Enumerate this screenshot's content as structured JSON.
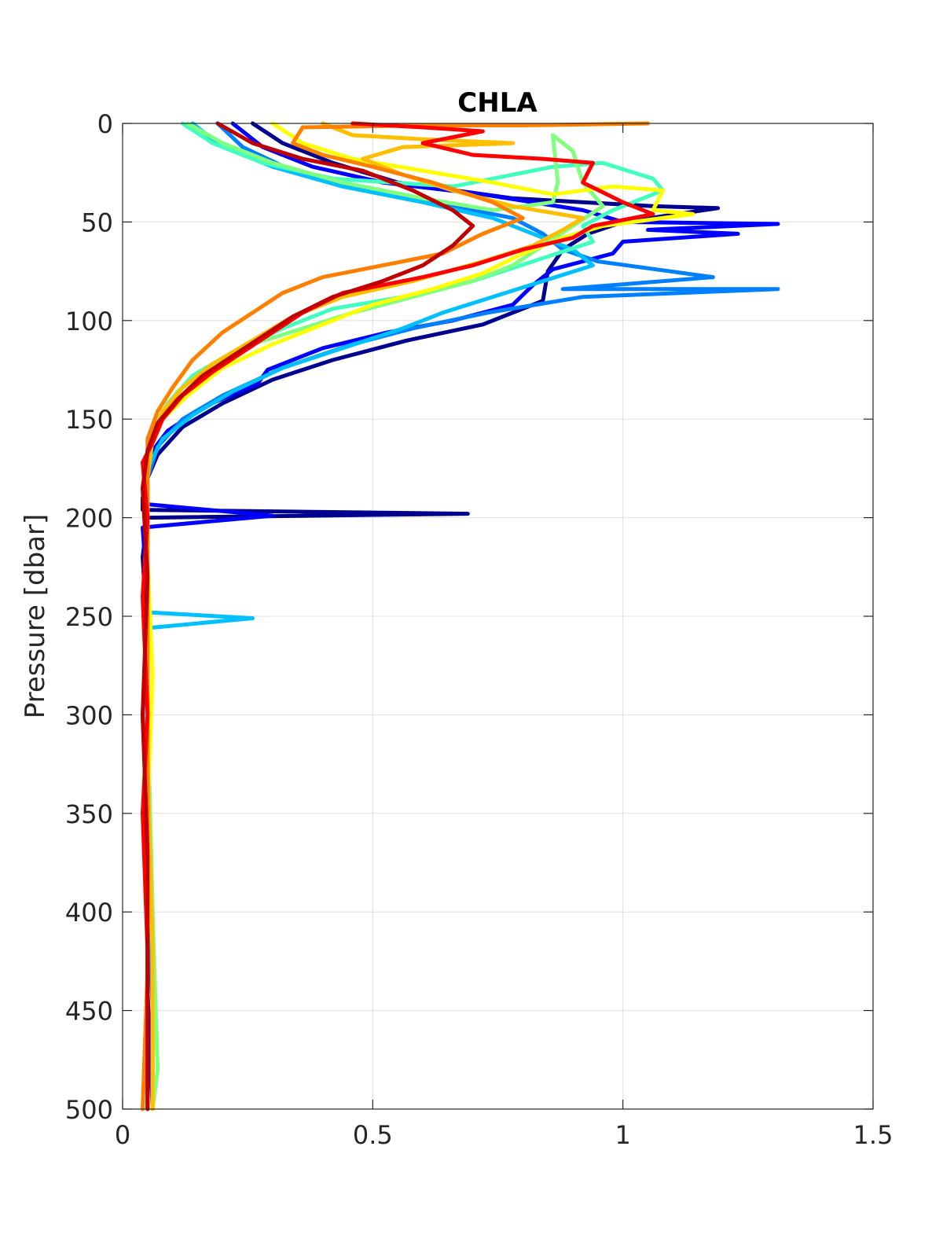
{
  "chart_data": {
    "type": "line",
    "title": "CHLA",
    "xlabel": "",
    "ylabel": "Pressure [dbar]",
    "xlim": [
      0,
      1.5
    ],
    "ylim": [
      0,
      500
    ],
    "y_reversed": true,
    "grid": true,
    "legend": "none",
    "xticks": [
      "0",
      "0.5",
      "1",
      "1.5"
    ],
    "yticks": [
      "0",
      "50",
      "100",
      "150",
      "200",
      "250",
      "300",
      "350",
      "400",
      "450",
      "500"
    ],
    "series": [
      {
        "color": "#00008f",
        "points": [
          [
            0.26,
            0
          ],
          [
            0.32,
            10
          ],
          [
            0.42,
            20
          ],
          [
            0.55,
            30
          ],
          [
            0.78,
            38
          ],
          [
            1.06,
            42
          ],
          [
            1.19,
            43
          ],
          [
            1.0,
            50
          ],
          [
            0.93,
            56
          ],
          [
            0.88,
            64
          ],
          [
            0.85,
            75
          ],
          [
            0.84,
            90
          ],
          [
            0.72,
            102
          ],
          [
            0.57,
            110
          ],
          [
            0.42,
            120
          ],
          [
            0.3,
            130
          ],
          [
            0.2,
            142
          ],
          [
            0.12,
            154
          ],
          [
            0.07,
            168
          ],
          [
            0.05,
            180
          ],
          [
            0.04,
            190
          ],
          [
            0.04,
            196
          ],
          [
            0.69,
            198
          ],
          [
            0.05,
            200
          ],
          [
            0.04,
            220
          ],
          [
            0.05,
            260
          ],
          [
            0.04,
            300
          ],
          [
            0.05,
            360
          ],
          [
            0.05,
            420
          ],
          [
            0.05,
            470
          ],
          [
            0.05,
            500
          ]
        ]
      },
      {
        "color": "#0000ff",
        "points": [
          [
            0.22,
            0
          ],
          [
            0.28,
            12
          ],
          [
            0.38,
            22
          ],
          [
            0.52,
            30
          ],
          [
            0.72,
            36
          ],
          [
            0.92,
            44
          ],
          [
            1.0,
            50
          ],
          [
            1.31,
            51
          ],
          [
            1.05,
            54
          ],
          [
            1.23,
            56
          ],
          [
            1.0,
            60
          ],
          [
            0.98,
            66
          ],
          [
            0.86,
            74
          ],
          [
            0.82,
            82
          ],
          [
            0.78,
            92
          ],
          [
            0.66,
            100
          ],
          [
            0.53,
            106
          ],
          [
            0.4,
            114
          ],
          [
            0.29,
            125
          ],
          [
            0.27,
            132
          ],
          [
            0.16,
            144
          ],
          [
            0.09,
            156
          ],
          [
            0.06,
            166
          ],
          [
            0.05,
            180
          ],
          [
            0.04,
            193
          ],
          [
            0.3,
            199
          ],
          [
            0.04,
            205
          ],
          [
            0.05,
            240
          ],
          [
            0.05,
            300
          ],
          [
            0.05,
            380
          ],
          [
            0.05,
            440
          ],
          [
            0.06,
            500
          ]
        ]
      },
      {
        "color": "#0080ff",
        "points": [
          [
            0.19,
            0
          ],
          [
            0.24,
            12
          ],
          [
            0.34,
            24
          ],
          [
            0.46,
            32
          ],
          [
            0.62,
            40
          ],
          [
            0.78,
            48
          ],
          [
            0.84,
            56
          ],
          [
            0.88,
            64
          ],
          [
            0.95,
            70
          ],
          [
            1.18,
            78
          ],
          [
            0.88,
            84
          ],
          [
            1.31,
            84
          ],
          [
            0.92,
            88
          ],
          [
            0.73,
            96
          ],
          [
            0.58,
            104
          ],
          [
            0.46,
            112
          ],
          [
            0.32,
            124
          ],
          [
            0.2,
            138
          ],
          [
            0.12,
            150
          ],
          [
            0.07,
            164
          ],
          [
            0.05,
            180
          ],
          [
            0.05,
            220
          ],
          [
            0.05,
            300
          ],
          [
            0.05,
            380
          ],
          [
            0.06,
            450
          ],
          [
            0.06,
            500
          ]
        ]
      },
      {
        "color": "#00c0ff",
        "points": [
          [
            0.14,
            0
          ],
          [
            0.2,
            12
          ],
          [
            0.3,
            22
          ],
          [
            0.44,
            32
          ],
          [
            0.6,
            40
          ],
          [
            0.74,
            48
          ],
          [
            0.82,
            56
          ],
          [
            0.9,
            64
          ],
          [
            0.94,
            72
          ],
          [
            0.84,
            80
          ],
          [
            0.74,
            88
          ],
          [
            0.64,
            96
          ],
          [
            0.56,
            104
          ],
          [
            0.44,
            114
          ],
          [
            0.32,
            124
          ],
          [
            0.22,
            136
          ],
          [
            0.14,
            148
          ],
          [
            0.08,
            160
          ],
          [
            0.05,
            175
          ],
          [
            0.05,
            220
          ],
          [
            0.05,
            248
          ],
          [
            0.26,
            251
          ],
          [
            0.05,
            256
          ],
          [
            0.05,
            300
          ],
          [
            0.05,
            360
          ],
          [
            0.06,
            430
          ],
          [
            0.06,
            500
          ]
        ]
      },
      {
        "color": "#40ffbf",
        "points": [
          [
            0.12,
            0
          ],
          [
            0.18,
            10
          ],
          [
            0.28,
            20
          ],
          [
            0.42,
            28
          ],
          [
            0.66,
            32
          ],
          [
            0.86,
            22
          ],
          [
            0.96,
            20
          ],
          [
            1.06,
            28
          ],
          [
            1.08,
            34
          ],
          [
            0.98,
            44
          ],
          [
            0.92,
            52
          ],
          [
            0.94,
            60
          ],
          [
            0.82,
            70
          ],
          [
            0.7,
            80
          ],
          [
            0.56,
            88
          ],
          [
            0.42,
            94
          ],
          [
            0.32,
            104
          ],
          [
            0.22,
            116
          ],
          [
            0.14,
            128
          ],
          [
            0.09,
            142
          ],
          [
            0.06,
            156
          ],
          [
            0.05,
            175
          ],
          [
            0.05,
            220
          ],
          [
            0.05,
            300
          ],
          [
            0.06,
            400
          ],
          [
            0.06,
            500
          ]
        ]
      },
      {
        "color": "#80ff80",
        "points": [
          [
            0.13,
            0
          ],
          [
            0.2,
            10
          ],
          [
            0.3,
            20
          ],
          [
            0.44,
            30
          ],
          [
            0.6,
            38
          ],
          [
            0.74,
            44
          ],
          [
            0.86,
            40
          ],
          [
            0.87,
            30
          ],
          [
            0.86,
            6
          ],
          [
            0.9,
            14
          ],
          [
            0.92,
            30
          ],
          [
            0.96,
            42
          ],
          [
            0.9,
            52
          ],
          [
            0.84,
            62
          ],
          [
            0.78,
            72
          ],
          [
            0.7,
            80
          ],
          [
            0.58,
            88
          ],
          [
            0.46,
            96
          ],
          [
            0.36,
            104
          ],
          [
            0.26,
            112
          ],
          [
            0.18,
            122
          ],
          [
            0.11,
            136
          ],
          [
            0.07,
            150
          ],
          [
            0.05,
            170
          ],
          [
            0.05,
            230
          ],
          [
            0.05,
            300
          ],
          [
            0.06,
            400
          ],
          [
            0.07,
            480
          ],
          [
            0.06,
            500
          ]
        ]
      },
      {
        "color": "#ffff00",
        "points": [
          [
            0.3,
            0
          ],
          [
            0.36,
            10
          ],
          [
            0.46,
            18
          ],
          [
            0.6,
            24
          ],
          [
            0.74,
            30
          ],
          [
            0.86,
            36
          ],
          [
            0.98,
            32
          ],
          [
            1.08,
            34
          ],
          [
            1.06,
            44
          ],
          [
            1.14,
            46
          ],
          [
            0.96,
            52
          ],
          [
            0.88,
            58
          ],
          [
            0.8,
            66
          ],
          [
            0.72,
            76
          ],
          [
            0.62,
            84
          ],
          [
            0.5,
            92
          ],
          [
            0.4,
            102
          ],
          [
            0.3,
            112
          ],
          [
            0.2,
            124
          ],
          [
            0.13,
            138
          ],
          [
            0.08,
            150
          ],
          [
            0.05,
            168
          ],
          [
            0.05,
            220
          ],
          [
            0.06,
            280
          ],
          [
            0.05,
            350
          ],
          [
            0.06,
            420
          ],
          [
            0.06,
            500
          ]
        ]
      },
      {
        "color": "#ffbf00",
        "points": [
          [
            0.4,
            0
          ],
          [
            0.46,
            6
          ],
          [
            0.6,
            8
          ],
          [
            0.78,
            10
          ],
          [
            0.56,
            12
          ],
          [
            0.48,
            18
          ],
          [
            0.56,
            26
          ],
          [
            0.66,
            34
          ],
          [
            0.78,
            42
          ],
          [
            0.92,
            48
          ],
          [
            0.88,
            54
          ],
          [
            0.82,
            62
          ],
          [
            0.72,
            70
          ],
          [
            0.58,
            80
          ],
          [
            0.44,
            88
          ],
          [
            0.34,
            98
          ],
          [
            0.26,
            110
          ],
          [
            0.18,
            122
          ],
          [
            0.12,
            134
          ],
          [
            0.08,
            146
          ],
          [
            0.06,
            160
          ],
          [
            0.05,
            180
          ],
          [
            0.05,
            250
          ],
          [
            0.05,
            320
          ],
          [
            0.06,
            420
          ],
          [
            0.06,
            500
          ]
        ]
      },
      {
        "color": "#ff8000",
        "points": [
          [
            1.05,
            0
          ],
          [
            0.8,
            1
          ],
          [
            0.6,
            1
          ],
          [
            0.36,
            2
          ],
          [
            0.34,
            10
          ],
          [
            0.4,
            16
          ],
          [
            0.5,
            22
          ],
          [
            0.62,
            30
          ],
          [
            0.74,
            40
          ],
          [
            0.8,
            48
          ],
          [
            0.72,
            56
          ],
          [
            0.64,
            66
          ],
          [
            0.52,
            72
          ],
          [
            0.4,
            78
          ],
          [
            0.32,
            86
          ],
          [
            0.26,
            96
          ],
          [
            0.2,
            106
          ],
          [
            0.14,
            120
          ],
          [
            0.1,
            134
          ],
          [
            0.07,
            146
          ],
          [
            0.05,
            160
          ],
          [
            0.05,
            200
          ],
          [
            0.05,
            280
          ],
          [
            0.05,
            360
          ],
          [
            0.05,
            430
          ],
          [
            0.04,
            500
          ]
        ]
      },
      {
        "color": "#ff0000",
        "points": [
          [
            0.46,
            0
          ],
          [
            0.6,
            2
          ],
          [
            0.72,
            4
          ],
          [
            0.6,
            10
          ],
          [
            0.7,
            16
          ],
          [
            0.84,
            18
          ],
          [
            0.94,
            20
          ],
          [
            0.92,
            30
          ],
          [
            1.0,
            40
          ],
          [
            1.06,
            46
          ],
          [
            0.94,
            52
          ],
          [
            0.9,
            58
          ],
          [
            0.8,
            64
          ],
          [
            0.7,
            72
          ],
          [
            0.6,
            78
          ],
          [
            0.52,
            82
          ],
          [
            0.44,
            86
          ],
          [
            0.36,
            96
          ],
          [
            0.3,
            106
          ],
          [
            0.24,
            116
          ],
          [
            0.18,
            126
          ],
          [
            0.12,
            138
          ],
          [
            0.08,
            150
          ],
          [
            0.06,
            162
          ],
          [
            0.04,
            172
          ],
          [
            0.05,
            200
          ],
          [
            0.04,
            240
          ],
          [
            0.05,
            300
          ],
          [
            0.04,
            350
          ],
          [
            0.05,
            420
          ],
          [
            0.05,
            500
          ]
        ]
      },
      {
        "color": "#c00000",
        "points": [
          [
            0.19,
            0
          ],
          [
            0.26,
            10
          ],
          [
            0.36,
            18
          ],
          [
            0.48,
            24
          ],
          [
            0.58,
            34
          ],
          [
            0.66,
            44
          ],
          [
            0.7,
            52
          ],
          [
            0.66,
            62
          ],
          [
            0.6,
            72
          ],
          [
            0.52,
            80
          ],
          [
            0.42,
            88
          ],
          [
            0.34,
            98
          ],
          [
            0.28,
            108
          ],
          [
            0.22,
            118
          ],
          [
            0.16,
            128
          ],
          [
            0.11,
            140
          ],
          [
            0.07,
            152
          ],
          [
            0.05,
            166
          ],
          [
            0.04,
            185
          ],
          [
            0.05,
            230
          ],
          [
            0.04,
            300
          ],
          [
            0.05,
            370
          ],
          [
            0.05,
            440
          ],
          [
            0.05,
            500
          ]
        ]
      }
    ]
  }
}
